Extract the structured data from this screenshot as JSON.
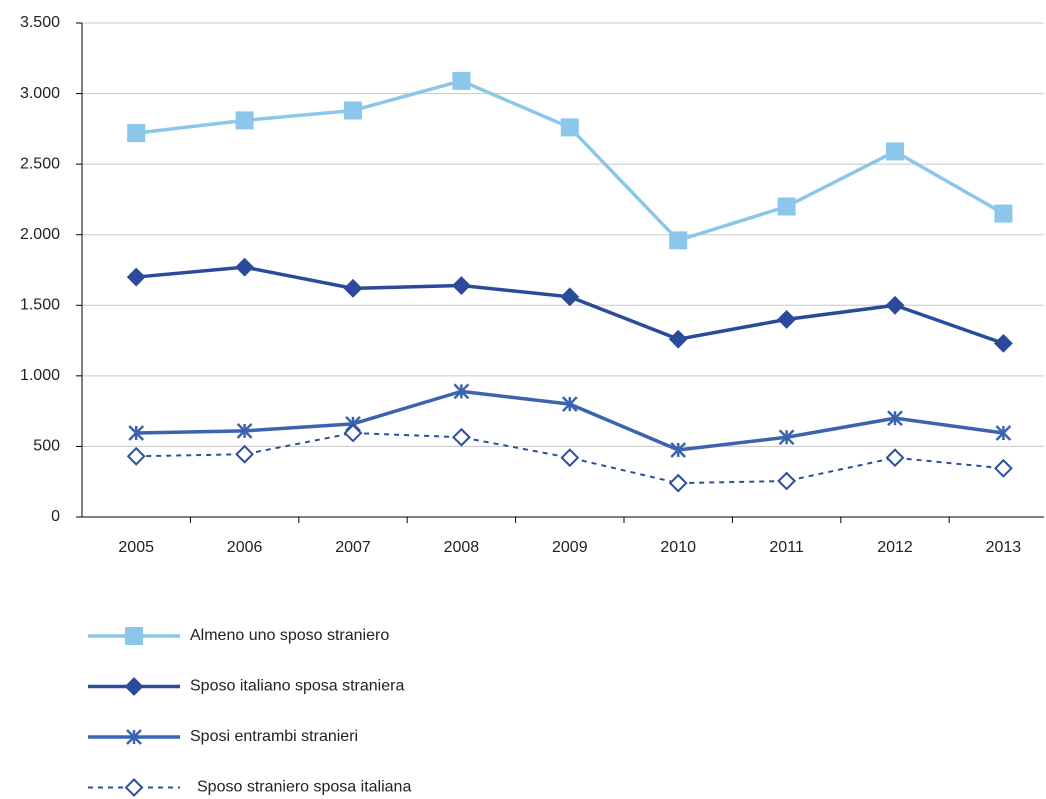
{
  "chart_data": {
    "type": "line",
    "categories": [
      "2005",
      "2006",
      "2007",
      "2008",
      "2009",
      "2010",
      "2011",
      "2012",
      "2013"
    ],
    "series": [
      {
        "name": "Almeno uno sposo straniero",
        "color": "#8cc6ea",
        "marker": "square",
        "dashed": false,
        "values": [
          2720,
          2810,
          2880,
          3090,
          2760,
          1960,
          2200,
          2590,
          2150
        ]
      },
      {
        "name": "Sposo italiano sposa straniera",
        "color": "#2a4b9b",
        "marker": "diamond",
        "dashed": false,
        "values": [
          1700,
          1770,
          1620,
          1640,
          1560,
          1260,
          1400,
          1500,
          1230
        ]
      },
      {
        "name": "Sposi entrambi stranieri",
        "color": "#3b63b0",
        "marker": "asterisk",
        "dashed": false,
        "values": [
          595,
          610,
          660,
          890,
          800,
          475,
          565,
          700,
          595
        ]
      },
      {
        "name": "Sposo straniero sposa italiana",
        "color": "#2b4f9e",
        "marker": "open-diamond",
        "dashed": true,
        "values": [
          430,
          445,
          595,
          565,
          420,
          240,
          255,
          420,
          345
        ]
      }
    ],
    "ylim": [
      0,
      3500
    ],
    "yticks": [
      0,
      500,
      {
        "value": 1000,
        "label": "1.000"
      },
      {
        "value": 1500,
        "label": "1.500"
      },
      {
        "value": 2000,
        "label": "2.000"
      },
      {
        "value": 2500,
        "label": "2.500"
      },
      {
        "value": 3000,
        "label": "3.000"
      },
      {
        "value": 3500,
        "label": "3.500"
      }
    ],
    "grid": true
  }
}
